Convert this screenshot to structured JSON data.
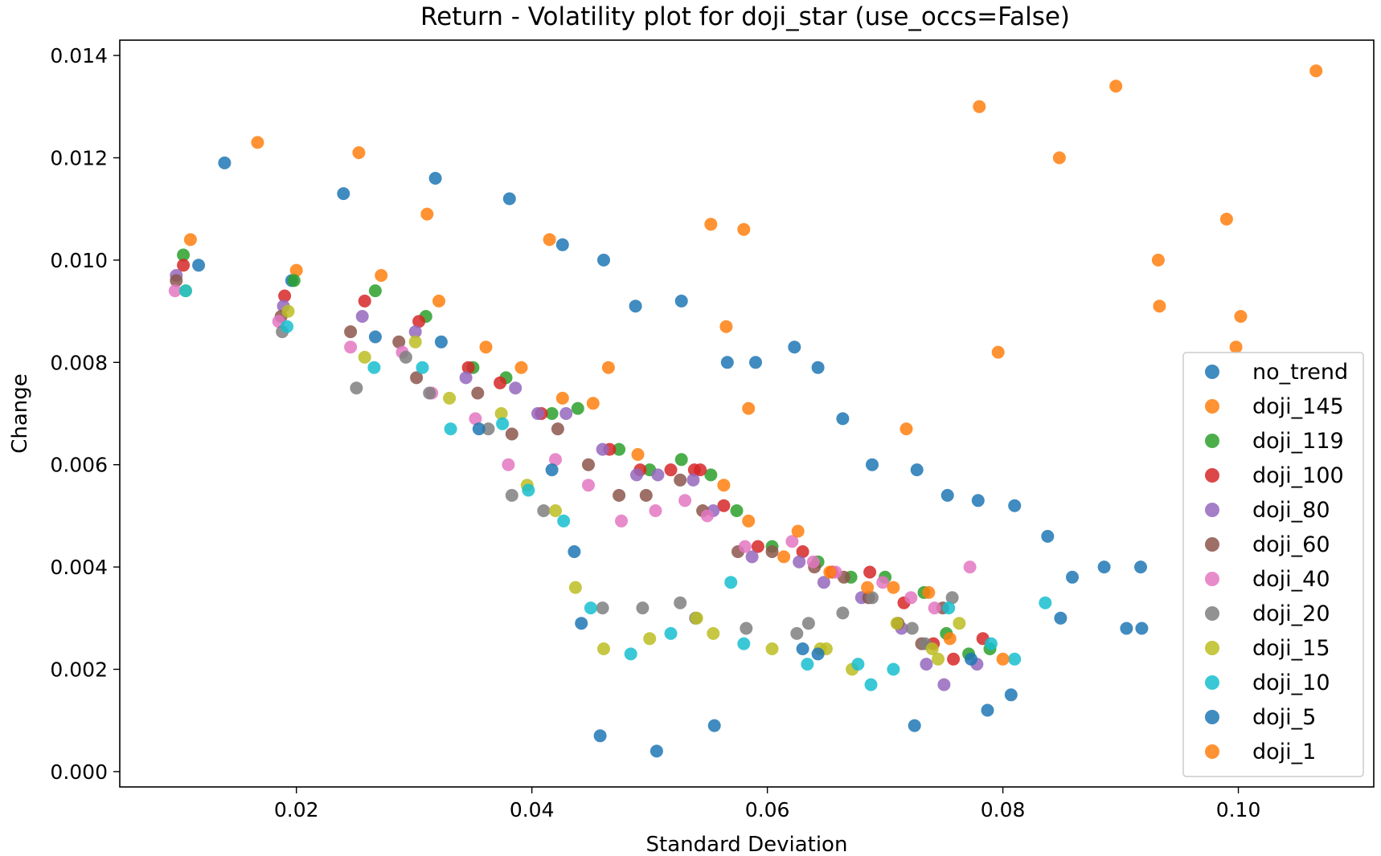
{
  "chart_data": {
    "type": "scatter",
    "title": "Return - Volatility plot for doji_star (use_occs=False)",
    "xlabel": "Standard Deviation",
    "ylabel": "Change",
    "xlim": [
      0.005,
      0.1115
    ],
    "ylim": [
      -0.0003,
      0.0143
    ],
    "xticks": [
      {
        "value": 0.02,
        "label": "0.02"
      },
      {
        "value": 0.04,
        "label": "0.04"
      },
      {
        "value": 0.06,
        "label": "0.06"
      },
      {
        "value": 0.08,
        "label": "0.08"
      },
      {
        "value": 0.1,
        "label": "0.10"
      }
    ],
    "yticks": [
      {
        "value": 0.0,
        "label": "0.000"
      },
      {
        "value": 0.002,
        "label": "0.002"
      },
      {
        "value": 0.004,
        "label": "0.004"
      },
      {
        "value": 0.006,
        "label": "0.006"
      },
      {
        "value": 0.008,
        "label": "0.008"
      },
      {
        "value": 0.01,
        "label": "0.010"
      },
      {
        "value": 0.012,
        "label": "0.012"
      },
      {
        "value": 0.014,
        "label": "0.014"
      }
    ],
    "grid": false,
    "legend_position": "lower-right",
    "series": [
      {
        "name": "no_trend",
        "color": "#1f77b4",
        "points": [
          [
            0.0117,
            0.0099
          ],
          [
            0.0139,
            0.0119
          ],
          [
            0.0196,
            0.0096
          ],
          [
            0.024,
            0.0113
          ],
          [
            0.0318,
            0.0116
          ],
          [
            0.0381,
            0.0112
          ],
          [
            0.0426,
            0.0103
          ],
          [
            0.0461,
            0.01
          ],
          [
            0.0488,
            0.0091
          ],
          [
            0.0527,
            0.0092
          ],
          [
            0.0566,
            0.008
          ],
          [
            0.059,
            0.008
          ],
          [
            0.0623,
            0.0083
          ],
          [
            0.0643,
            0.0079
          ],
          [
            0.0664,
            0.0069
          ],
          [
            0.0689,
            0.006
          ],
          [
            0.0727,
            0.0059
          ],
          [
            0.0753,
            0.0054
          ],
          [
            0.0779,
            0.0053
          ],
          [
            0.081,
            0.0052
          ],
          [
            0.0838,
            0.0046
          ],
          [
            0.0859,
            0.0038
          ],
          [
            0.0886,
            0.004
          ],
          [
            0.0917,
            0.004
          ],
          [
            0.0849,
            0.003
          ],
          [
            0.0905,
            0.0028
          ],
          [
            0.0918,
            0.0028
          ]
        ]
      },
      {
        "name": "doji_145",
        "color": "#ff7f0e",
        "points": [
          [
            0.0167,
            0.0123
          ],
          [
            0.0253,
            0.0121
          ],
          [
            0.0311,
            0.0109
          ],
          [
            0.0415,
            0.0104
          ],
          [
            0.0552,
            0.0107
          ],
          [
            0.058,
            0.0106
          ],
          [
            0.078,
            0.013
          ],
          [
            0.0896,
            0.0134
          ],
          [
            0.1066,
            0.0137
          ],
          [
            0.0848,
            0.012
          ],
          [
            0.099,
            0.0108
          ],
          [
            0.0932,
            0.01
          ],
          [
            0.0933,
            0.0091
          ],
          [
            0.1002,
            0.0089
          ],
          [
            0.0998,
            0.0083
          ],
          [
            0.0796,
            0.0082
          ],
          [
            0.0565,
            0.0087
          ],
          [
            0.0584,
            0.0071
          ],
          [
            0.0718,
            0.0067
          ],
          [
            0.0465,
            0.0079
          ],
          [
            0.0391,
            0.0079
          ],
          [
            0.0361,
            0.0083
          ],
          [
            0.0321,
            0.0092
          ],
          [
            0.0272,
            0.0097
          ],
          [
            0.02,
            0.0098
          ],
          [
            0.011,
            0.0104
          ]
        ]
      },
      {
        "name": "doji_119",
        "color": "#2ca02c",
        "points": [
          [
            0.0104,
            0.0101
          ],
          [
            0.0198,
            0.0096
          ],
          [
            0.0267,
            0.0094
          ],
          [
            0.031,
            0.0089
          ],
          [
            0.035,
            0.0079
          ],
          [
            0.0378,
            0.0077
          ],
          [
            0.0417,
            0.007
          ],
          [
            0.0439,
            0.0071
          ],
          [
            0.0474,
            0.0063
          ],
          [
            0.05,
            0.0059
          ],
          [
            0.0527,
            0.0061
          ],
          [
            0.0552,
            0.0058
          ],
          [
            0.0574,
            0.0051
          ],
          [
            0.0604,
            0.0044
          ],
          [
            0.0643,
            0.0041
          ],
          [
            0.0671,
            0.0038
          ],
          [
            0.07,
            0.0038
          ],
          [
            0.0733,
            0.0035
          ],
          [
            0.0752,
            0.0027
          ],
          [
            0.0771,
            0.0023
          ],
          [
            0.0789,
            0.0024
          ]
        ]
      },
      {
        "name": "doji_100",
        "color": "#d62728",
        "points": [
          [
            0.0104,
            0.0099
          ],
          [
            0.019,
            0.0093
          ],
          [
            0.0258,
            0.0092
          ],
          [
            0.0304,
            0.0088
          ],
          [
            0.0346,
            0.0079
          ],
          [
            0.0373,
            0.0076
          ],
          [
            0.0408,
            0.007
          ],
          [
            0.0466,
            0.0063
          ],
          [
            0.0492,
            0.0059
          ],
          [
            0.0518,
            0.0059
          ],
          [
            0.0538,
            0.0059
          ],
          [
            0.0543,
            0.0059
          ],
          [
            0.0563,
            0.0052
          ],
          [
            0.0592,
            0.0044
          ],
          [
            0.063,
            0.0043
          ],
          [
            0.0655,
            0.0039
          ],
          [
            0.0687,
            0.0039
          ],
          [
            0.0716,
            0.0033
          ],
          [
            0.0741,
            0.0025
          ],
          [
            0.0758,
            0.0022
          ],
          [
            0.0783,
            0.0026
          ]
        ]
      },
      {
        "name": "doji_80",
        "color": "#9467bd",
        "points": [
          [
            0.0098,
            0.0097
          ],
          [
            0.0189,
            0.0091
          ],
          [
            0.0256,
            0.0089
          ],
          [
            0.0301,
            0.0086
          ],
          [
            0.0344,
            0.0077
          ],
          [
            0.0386,
            0.0075
          ],
          [
            0.0405,
            0.007
          ],
          [
            0.0429,
            0.007
          ],
          [
            0.046,
            0.0063
          ],
          [
            0.0489,
            0.0058
          ],
          [
            0.0507,
            0.0058
          ],
          [
            0.0537,
            0.0057
          ],
          [
            0.0554,
            0.0051
          ],
          [
            0.0587,
            0.0042
          ],
          [
            0.0627,
            0.0041
          ],
          [
            0.0648,
            0.0037
          ],
          [
            0.068,
            0.0034
          ],
          [
            0.0714,
            0.0028
          ],
          [
            0.0735,
            0.0021
          ],
          [
            0.075,
            0.0017
          ],
          [
            0.0778,
            0.0021
          ]
        ]
      },
      {
        "name": "doji_60",
        "color": "#8c564b",
        "points": [
          [
            0.0098,
            0.0096
          ],
          [
            0.0187,
            0.0089
          ],
          [
            0.0246,
            0.0086
          ],
          [
            0.0287,
            0.0084
          ],
          [
            0.0302,
            0.0077
          ],
          [
            0.0354,
            0.0074
          ],
          [
            0.0383,
            0.0066
          ],
          [
            0.0422,
            0.0067
          ],
          [
            0.0448,
            0.006
          ],
          [
            0.0474,
            0.0054
          ],
          [
            0.0497,
            0.0054
          ],
          [
            0.0526,
            0.0057
          ],
          [
            0.0545,
            0.0051
          ],
          [
            0.0575,
            0.0043
          ],
          [
            0.0604,
            0.0043
          ],
          [
            0.064,
            0.004
          ],
          [
            0.0665,
            0.0038
          ],
          [
            0.0686,
            0.0034
          ],
          [
            0.0711,
            0.0029
          ],
          [
            0.0731,
            0.0025
          ],
          [
            0.0749,
            0.0032
          ]
        ]
      },
      {
        "name": "doji_40",
        "color": "#e377c2",
        "points": [
          [
            0.0097,
            0.0094
          ],
          [
            0.0185,
            0.0088
          ],
          [
            0.0246,
            0.0083
          ],
          [
            0.029,
            0.0082
          ],
          [
            0.0315,
            0.0074
          ],
          [
            0.0352,
            0.0069
          ],
          [
            0.038,
            0.006
          ],
          [
            0.042,
            0.0061
          ],
          [
            0.0448,
            0.0056
          ],
          [
            0.0476,
            0.0049
          ],
          [
            0.0505,
            0.0051
          ],
          [
            0.053,
            0.0053
          ],
          [
            0.0549,
            0.005
          ],
          [
            0.0581,
            0.0044
          ],
          [
            0.0621,
            0.0045
          ],
          [
            0.0639,
            0.0041
          ],
          [
            0.0658,
            0.0039
          ],
          [
            0.0698,
            0.0037
          ],
          [
            0.0722,
            0.0034
          ],
          [
            0.0742,
            0.0032
          ],
          [
            0.0772,
            0.004
          ]
        ]
      },
      {
        "name": "doji_20",
        "color": "#7f7f7f",
        "points": [
          [
            0.0188,
            0.0086
          ],
          [
            0.0251,
            0.0075
          ],
          [
            0.0293,
            0.0081
          ],
          [
            0.0313,
            0.0074
          ],
          [
            0.0363,
            0.0067
          ],
          [
            0.0383,
            0.0054
          ],
          [
            0.041,
            0.0051
          ],
          [
            0.046,
            0.0032
          ],
          [
            0.0494,
            0.0032
          ],
          [
            0.0526,
            0.0033
          ],
          [
            0.0539,
            0.003
          ],
          [
            0.0582,
            0.0028
          ],
          [
            0.0625,
            0.0027
          ],
          [
            0.0635,
            0.0029
          ],
          [
            0.0664,
            0.0031
          ],
          [
            0.0689,
            0.0034
          ],
          [
            0.0723,
            0.0028
          ],
          [
            0.0734,
            0.0025
          ],
          [
            0.0757,
            0.0034
          ]
        ]
      },
      {
        "name": "doji_15",
        "color": "#bcbd22",
        "points": [
          [
            0.0106,
            0.0094
          ],
          [
            0.0193,
            0.009
          ],
          [
            0.0258,
            0.0081
          ],
          [
            0.0301,
            0.0084
          ],
          [
            0.033,
            0.0073
          ],
          [
            0.0374,
            0.007
          ],
          [
            0.0396,
            0.0056
          ],
          [
            0.042,
            0.0051
          ],
          [
            0.0437,
            0.0036
          ],
          [
            0.0461,
            0.0024
          ],
          [
            0.05,
            0.0026
          ],
          [
            0.054,
            0.003
          ],
          [
            0.0554,
            0.0027
          ],
          [
            0.0604,
            0.0024
          ],
          [
            0.0645,
            0.0024
          ],
          [
            0.065,
            0.0024
          ],
          [
            0.0672,
            0.002
          ],
          [
            0.071,
            0.0029
          ],
          [
            0.074,
            0.0024
          ],
          [
            0.0745,
            0.0022
          ],
          [
            0.0763,
            0.0029
          ]
        ]
      },
      {
        "name": "doji_10",
        "color": "#17becf",
        "points": [
          [
            0.0106,
            0.0094
          ],
          [
            0.0192,
            0.0087
          ],
          [
            0.0266,
            0.0079
          ],
          [
            0.0307,
            0.0079
          ],
          [
            0.0331,
            0.0067
          ],
          [
            0.0375,
            0.0068
          ],
          [
            0.0397,
            0.0055
          ],
          [
            0.0427,
            0.0049
          ],
          [
            0.045,
            0.0032
          ],
          [
            0.0484,
            0.0023
          ],
          [
            0.0518,
            0.0027
          ],
          [
            0.0569,
            0.0037
          ],
          [
            0.058,
            0.0025
          ],
          [
            0.0634,
            0.0021
          ],
          [
            0.0677,
            0.0021
          ],
          [
            0.0688,
            0.0017
          ],
          [
            0.0707,
            0.002
          ],
          [
            0.0754,
            0.0032
          ],
          [
            0.079,
            0.0025
          ],
          [
            0.081,
            0.0022
          ],
          [
            0.0836,
            0.0033
          ]
        ]
      },
      {
        "name": "doji_5",
        "color": "#1f77b4",
        "points": [
          [
            0.0267,
            0.0085
          ],
          [
            0.0323,
            0.0084
          ],
          [
            0.0355,
            0.0067
          ],
          [
            0.0417,
            0.0059
          ],
          [
            0.0436,
            0.0043
          ],
          [
            0.0442,
            0.0029
          ],
          [
            0.0458,
            0.0007
          ],
          [
            0.0506,
            0.0004
          ],
          [
            0.0555,
            0.0009
          ],
          [
            0.063,
            0.0024
          ],
          [
            0.0643,
            0.0023
          ],
          [
            0.0725,
            0.0009
          ],
          [
            0.0773,
            0.0022
          ],
          [
            0.0787,
            0.0012
          ],
          [
            0.0807,
            0.0015
          ]
        ]
      },
      {
        "name": "doji_1",
        "color": "#ff7f0e",
        "points": [
          [
            0.0452,
            0.0072
          ],
          [
            0.0426,
            0.0073
          ],
          [
            0.049,
            0.0062
          ],
          [
            0.0563,
            0.0056
          ],
          [
            0.0584,
            0.0049
          ],
          [
            0.0626,
            0.0047
          ],
          [
            0.0614,
            0.0042
          ],
          [
            0.0653,
            0.0039
          ],
          [
            0.0685,
            0.0036
          ],
          [
            0.0707,
            0.0036
          ],
          [
            0.0737,
            0.0035
          ],
          [
            0.0755,
            0.0026
          ],
          [
            0.08,
            0.0022
          ]
        ]
      }
    ]
  }
}
